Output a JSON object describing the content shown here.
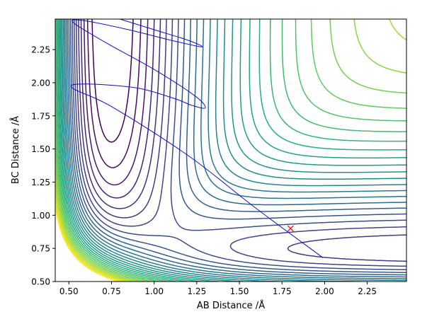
{
  "chart_data": {
    "type": "contour",
    "xlabel": "AB Distance /Å",
    "ylabel": "BC Distance /Å",
    "xlim": [
      0.42,
      2.48
    ],
    "ylim": [
      0.5,
      2.48
    ],
    "x_ticks": [
      0.5,
      0.75,
      1.0,
      1.25,
      1.5,
      1.75,
      2.0,
      2.25
    ],
    "x_tick_labels": [
      "0.50",
      "0.75",
      "1.00",
      "1.25",
      "1.50",
      "1.75",
      "2.00",
      "2.25"
    ],
    "y_ticks": [
      0.5,
      0.75,
      1.0,
      1.25,
      1.5,
      1.75,
      2.0,
      2.25
    ],
    "y_tick_labels": [
      "0.50",
      "0.75",
      "1.00",
      "1.25",
      "1.50",
      "1.75",
      "2.00",
      "2.25"
    ],
    "grid": false,
    "colormap": "viridis",
    "trajectory_color": "#1010c8",
    "marker": {
      "symbol": "x",
      "color": "#ff0000",
      "x": 1.8,
      "y": 0.9
    },
    "trajectory": [
      [
        1.99,
        0.68
      ],
      [
        1.6,
        1.05
      ],
      [
        1.2,
        1.45
      ],
      [
        0.75,
        1.82
      ],
      [
        0.52,
        1.96
      ],
      [
        0.6,
        1.99
      ],
      [
        0.9,
        1.96
      ],
      [
        1.12,
        1.88
      ],
      [
        1.22,
        1.83
      ],
      [
        1.3,
        1.81
      ],
      [
        1.24,
        1.9
      ],
      [
        1.0,
        2.1
      ],
      [
        0.72,
        2.3
      ],
      [
        0.53,
        2.45
      ],
      [
        0.58,
        2.47
      ],
      [
        0.85,
        2.4
      ],
      [
        1.1,
        2.32
      ],
      [
        1.28,
        2.27
      ],
      [
        1.2,
        2.32
      ],
      [
        1.0,
        2.4
      ],
      [
        0.8,
        2.48
      ]
    ]
  }
}
